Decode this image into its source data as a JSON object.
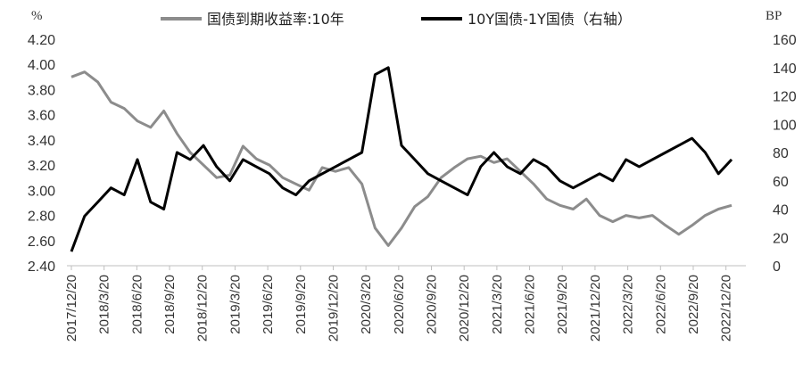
{
  "chart_data": {
    "type": "line",
    "left_axis": {
      "unit": "%",
      "min": 2.4,
      "max": 4.2,
      "ticks": [
        "4.20",
        "4.00",
        "3.80",
        "3.60",
        "3.40",
        "3.20",
        "3.00",
        "2.80",
        "2.60",
        "2.40"
      ]
    },
    "right_axis": {
      "unit": "BP",
      "min": 0,
      "max": 160,
      "ticks": [
        "160",
        "140",
        "120",
        "100",
        "80",
        "60",
        "40",
        "20",
        "0"
      ]
    },
    "x_labels": [
      "2017/12/20",
      "2018/3/20",
      "2018/6/20",
      "2018/9/20",
      "2018/12/20",
      "2019/3/20",
      "2019/6/20",
      "2019/9/20",
      "2019/12/20",
      "2020/3/20",
      "2020/6/20",
      "2020/9/20",
      "2020/12/20",
      "2021/3/20",
      "2021/6/20",
      "2021/9/20",
      "2021/12/20",
      "2022/3/20",
      "2022/6/20",
      "2022/9/20",
      "2022/12/20"
    ],
    "legend": "top",
    "series": [
      {
        "name": "国债到期收益率:10年",
        "axis": "left",
        "color": "#8c8c8c",
        "points": [
          [
            0,
            3.9
          ],
          [
            1,
            3.94
          ],
          [
            2,
            3.86
          ],
          [
            3,
            3.7
          ],
          [
            4,
            3.65
          ],
          [
            5,
            3.55
          ],
          [
            6,
            3.5
          ],
          [
            7,
            3.63
          ],
          [
            8,
            3.45
          ],
          [
            9,
            3.3
          ],
          [
            10,
            3.2
          ],
          [
            11,
            3.1
          ],
          [
            12,
            3.12
          ],
          [
            13,
            3.35
          ],
          [
            14,
            3.25
          ],
          [
            15,
            3.2
          ],
          [
            16,
            3.1
          ],
          [
            17,
            3.05
          ],
          [
            18,
            3.0
          ],
          [
            19,
            3.18
          ],
          [
            20,
            3.15
          ],
          [
            21,
            3.18
          ],
          [
            22,
            3.05
          ],
          [
            23,
            2.7
          ],
          [
            24,
            2.56
          ],
          [
            25,
            2.7
          ],
          [
            26,
            2.87
          ],
          [
            27,
            2.95
          ],
          [
            28,
            3.1
          ],
          [
            29,
            3.18
          ],
          [
            30,
            3.25
          ],
          [
            31,
            3.27
          ],
          [
            32,
            3.22
          ],
          [
            33,
            3.25
          ],
          [
            34,
            3.15
          ],
          [
            35,
            3.05
          ],
          [
            36,
            2.93
          ],
          [
            37,
            2.88
          ],
          [
            38,
            2.85
          ],
          [
            39,
            2.93
          ],
          [
            40,
            2.8
          ],
          [
            41,
            2.75
          ],
          [
            42,
            2.8
          ],
          [
            43,
            2.78
          ],
          [
            44,
            2.8
          ],
          [
            45,
            2.72
          ],
          [
            46,
            2.65
          ],
          [
            47,
            2.72
          ],
          [
            48,
            2.8
          ],
          [
            49,
            2.85
          ],
          [
            50,
            2.88
          ]
        ]
      },
      {
        "name": "10Y国债-1Y国债（右轴）",
        "axis": "right",
        "color": "#000000",
        "points": [
          [
            0,
            10
          ],
          [
            1,
            35
          ],
          [
            2,
            45
          ],
          [
            3,
            55
          ],
          [
            4,
            50
          ],
          [
            5,
            75
          ],
          [
            6,
            45
          ],
          [
            7,
            40
          ],
          [
            8,
            80
          ],
          [
            9,
            75
          ],
          [
            10,
            85
          ],
          [
            11,
            70
          ],
          [
            12,
            60
          ],
          [
            13,
            75
          ],
          [
            14,
            70
          ],
          [
            15,
            65
          ],
          [
            16,
            55
          ],
          [
            17,
            50
          ],
          [
            18,
            60
          ],
          [
            19,
            65
          ],
          [
            20,
            70
          ],
          [
            21,
            75
          ],
          [
            22,
            80
          ],
          [
            23,
            135
          ],
          [
            24,
            140
          ],
          [
            25,
            85
          ],
          [
            26,
            75
          ],
          [
            27,
            65
          ],
          [
            28,
            60
          ],
          [
            29,
            55
          ],
          [
            30,
            50
          ],
          [
            31,
            70
          ],
          [
            32,
            80
          ],
          [
            33,
            70
          ],
          [
            34,
            65
          ],
          [
            35,
            75
          ],
          [
            36,
            70
          ],
          [
            37,
            60
          ],
          [
            38,
            55
          ],
          [
            39,
            60
          ],
          [
            40,
            65
          ],
          [
            41,
            60
          ],
          [
            42,
            75
          ],
          [
            43,
            70
          ],
          [
            44,
            75
          ],
          [
            45,
            80
          ],
          [
            46,
            85
          ],
          [
            47,
            90
          ],
          [
            48,
            80
          ],
          [
            49,
            65
          ],
          [
            50,
            75
          ]
        ]
      }
    ]
  }
}
